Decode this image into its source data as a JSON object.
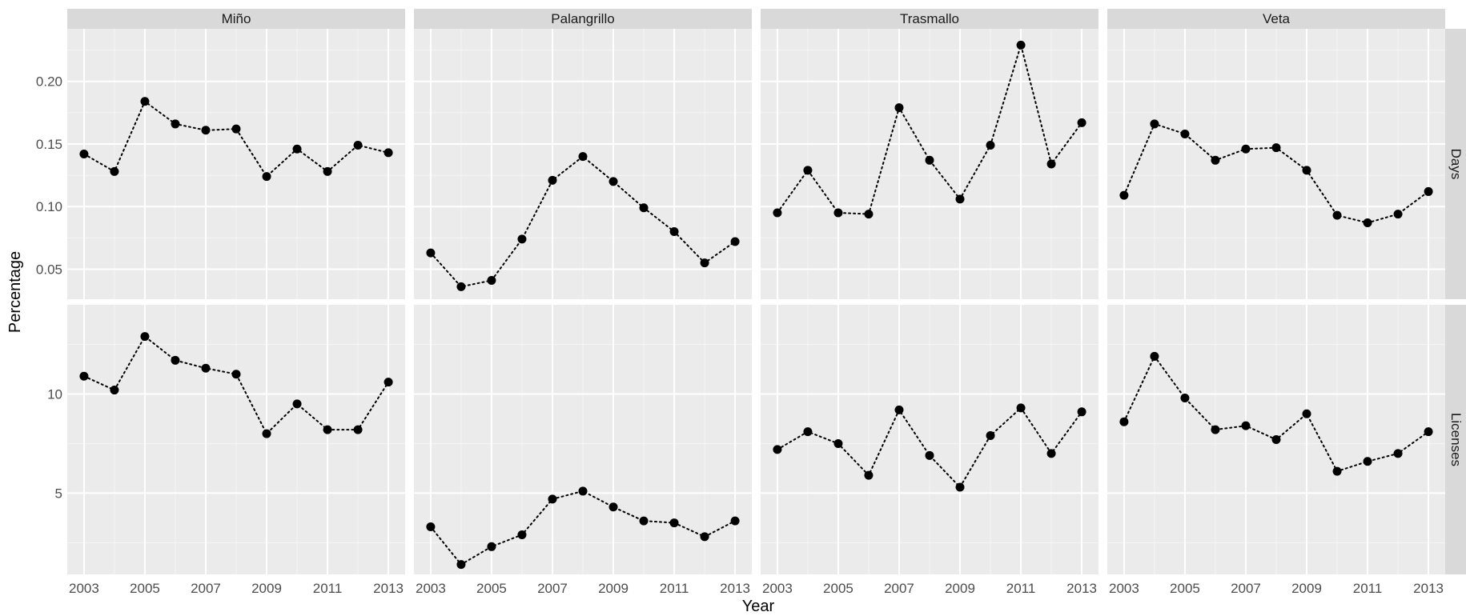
{
  "chart_data": {
    "type": "scatter",
    "xlabel": "Year",
    "ylabel": "Percentage",
    "grid": true,
    "legend": "none",
    "colors": {
      "panel_bg": "#ebebeb",
      "strip_bg": "#d9d9d9",
      "grid": "#ffffff",
      "point": "#000000",
      "line": "#000000"
    },
    "x": [
      2003,
      2004,
      2005,
      2006,
      2007,
      2008,
      2009,
      2010,
      2011,
      2012,
      2013
    ],
    "x_ticks": [
      "2003",
      "2005",
      "2007",
      "2009",
      "2011",
      "2013"
    ],
    "x_range": [
      2002.45,
      2013.55
    ],
    "columns": [
      "Miño",
      "Palangrillo",
      "Trasmallo",
      "Veta"
    ],
    "rows": [
      {
        "name": "Days",
        "y_range": [
          0.026,
          0.242
        ],
        "y_ticks": [
          "0.05",
          "0.10",
          "0.15",
          "0.20"
        ],
        "y_tick_values": [
          0.05,
          0.1,
          0.15,
          0.2
        ],
        "series": [
          {
            "name": "Miño",
            "values": [
              0.142,
              0.128,
              0.184,
              0.166,
              0.161,
              0.162,
              0.124,
              0.146,
              0.128,
              0.149,
              0.143
            ]
          },
          {
            "name": "Palangrillo",
            "values": [
              0.063,
              0.036,
              0.041,
              0.074,
              0.121,
              0.14,
              0.12,
              0.099,
              0.08,
              0.055,
              0.072
            ]
          },
          {
            "name": "Trasmallo",
            "values": [
              0.095,
              0.129,
              0.095,
              0.094,
              0.179,
              0.137,
              0.106,
              0.149,
              0.229,
              0.134,
              0.167
            ]
          },
          {
            "name": "Veta",
            "values": [
              0.109,
              0.166,
              0.158,
              0.137,
              0.146,
              0.147,
              0.129,
              0.093,
              0.087,
              0.094,
              0.112
            ]
          }
        ]
      },
      {
        "name": "Licenses",
        "y_range": [
          0.9,
          14.5
        ],
        "y_ticks": [
          "5",
          "10"
        ],
        "y_tick_values": [
          5,
          10
        ],
        "series": [
          {
            "name": "Miño",
            "values": [
              10.9,
              10.2,
              12.9,
              11.7,
              11.3,
              11.0,
              8.0,
              9.5,
              8.2,
              8.2,
              10.6
            ]
          },
          {
            "name": "Palangrillo",
            "values": [
              3.3,
              1.4,
              2.3,
              2.9,
              4.7,
              5.1,
              4.3,
              3.6,
              3.5,
              2.8,
              3.6
            ]
          },
          {
            "name": "Trasmallo",
            "values": [
              7.2,
              8.1,
              7.5,
              5.9,
              9.2,
              6.9,
              5.3,
              7.9,
              9.3,
              7.0,
              9.1
            ]
          },
          {
            "name": "Veta",
            "values": [
              8.6,
              11.9,
              9.8,
              8.2,
              8.4,
              7.7,
              9.0,
              6.1,
              6.6,
              7.0,
              8.1
            ]
          }
        ]
      }
    ]
  }
}
